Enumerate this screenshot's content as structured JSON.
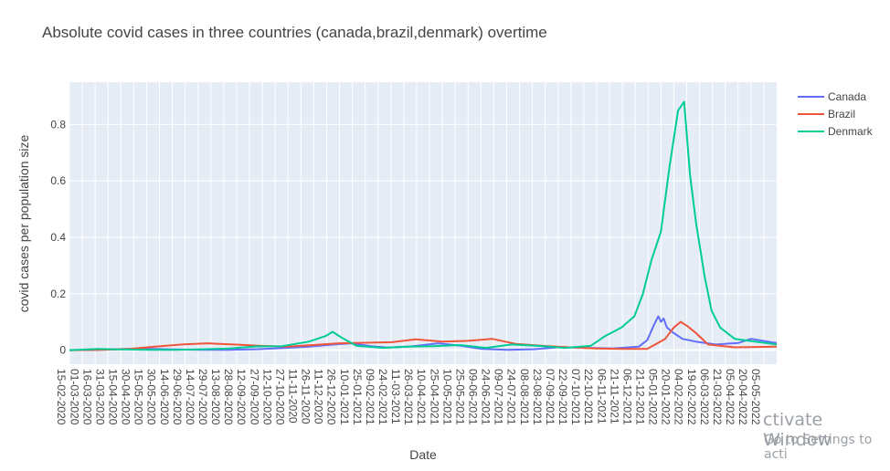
{
  "chart_data": {
    "type": "line",
    "title": "Absolute covid cases in three countries (canada,brazil,denmark) overtime",
    "xlabel": "Date",
    "ylabel": "covid cases per population size",
    "x_range": [
      "2020-02-15",
      "2022-05-20"
    ],
    "ylim": [
      -0.05,
      0.95
    ],
    "y_ticks": [
      0,
      0.2,
      0.4,
      0.6,
      0.8
    ],
    "x_ticks": [
      "15-02-2020",
      "01-03-2020",
      "16-03-2020",
      "31-03-2020",
      "15-04-2020",
      "30-04-2020",
      "15-05-2020",
      "30-05-2020",
      "14-06-2020",
      "29-06-2020",
      "14-07-2020",
      "29-07-2020",
      "13-08-2020",
      "28-08-2020",
      "12-09-2020",
      "27-09-2020",
      "12-10-2020",
      "27-10-2020",
      "11-11-2020",
      "26-11-2020",
      "11-12-2020",
      "26-12-2020",
      "10-01-2021",
      "25-01-2021",
      "09-02-2021",
      "24-02-2021",
      "11-03-2021",
      "26-03-2021",
      "10-04-2021",
      "25-04-2021",
      "10-05-2021",
      "25-05-2021",
      "09-06-2021",
      "24-06-2021",
      "09-07-2021",
      "24-07-2021",
      "08-08-2021",
      "23-08-2021",
      "07-09-2021",
      "22-09-2021",
      "07-10-2021",
      "22-10-2021",
      "06-11-2021",
      "21-11-2021",
      "06-12-2021",
      "21-12-2021",
      "05-01-2022",
      "20-01-2022",
      "04-02-2022",
      "19-02-2022",
      "06-03-2022",
      "21-03-2022",
      "05-04-2022",
      "20-04-2022",
      "05-05-2022"
    ],
    "grid": true,
    "legend_position": "top-right",
    "background_color": "#e5ecf6",
    "series": [
      {
        "name": "Canada",
        "color": "#636efa",
        "points": [
          [
            "2020-02-15",
            0.0
          ],
          [
            "2020-03-20",
            0.001
          ],
          [
            "2020-04-20",
            0.004
          ],
          [
            "2020-05-20",
            0.004
          ],
          [
            "2020-06-20",
            0.002
          ],
          [
            "2020-07-20",
            0.001
          ],
          [
            "2020-08-20",
            0.001
          ],
          [
            "2020-09-20",
            0.003
          ],
          [
            "2020-10-20",
            0.007
          ],
          [
            "2020-11-20",
            0.012
          ],
          [
            "2020-12-20",
            0.02
          ],
          [
            "2021-01-08",
            0.024
          ],
          [
            "2021-02-01",
            0.014
          ],
          [
            "2021-02-20",
            0.009
          ],
          [
            "2021-03-20",
            0.013
          ],
          [
            "2021-04-20",
            0.024
          ],
          [
            "2021-05-15",
            0.016
          ],
          [
            "2021-06-10",
            0.004
          ],
          [
            "2021-07-10",
            0.001
          ],
          [
            "2021-08-10",
            0.003
          ],
          [
            "2021-09-10",
            0.011
          ],
          [
            "2021-10-10",
            0.008
          ],
          [
            "2021-11-10",
            0.006
          ],
          [
            "2021-12-10",
            0.012
          ],
          [
            "2021-12-20",
            0.035
          ],
          [
            "2021-12-28",
            0.09
          ],
          [
            "2022-01-02",
            0.12
          ],
          [
            "2022-01-05",
            0.1
          ],
          [
            "2022-01-08",
            0.112
          ],
          [
            "2022-01-12",
            0.08
          ],
          [
            "2022-01-20",
            0.06
          ],
          [
            "2022-01-30",
            0.04
          ],
          [
            "2022-02-15",
            0.03
          ],
          [
            "2022-03-10",
            0.02
          ],
          [
            "2022-04-05",
            0.025
          ],
          [
            "2022-04-20",
            0.04
          ],
          [
            "2022-05-20",
            0.025
          ]
        ]
      },
      {
        "name": "Brazil",
        "color": "#ef553b",
        "points": [
          [
            "2020-02-15",
            0.0
          ],
          [
            "2020-03-25",
            0.001
          ],
          [
            "2020-04-25",
            0.004
          ],
          [
            "2020-05-25",
            0.012
          ],
          [
            "2020-06-25",
            0.02
          ],
          [
            "2020-07-25",
            0.024
          ],
          [
            "2020-08-25",
            0.02
          ],
          [
            "2020-09-25",
            0.015
          ],
          [
            "2020-10-25",
            0.012
          ],
          [
            "2020-11-25",
            0.018
          ],
          [
            "2020-12-25",
            0.024
          ],
          [
            "2021-01-25",
            0.026
          ],
          [
            "2021-02-25",
            0.028
          ],
          [
            "2021-03-25",
            0.038
          ],
          [
            "2021-04-25",
            0.03
          ],
          [
            "2021-05-25",
            0.033
          ],
          [
            "2021-06-22",
            0.04
          ],
          [
            "2021-07-20",
            0.022
          ],
          [
            "2021-08-20",
            0.015
          ],
          [
            "2021-09-20",
            0.01
          ],
          [
            "2021-10-20",
            0.006
          ],
          [
            "2021-11-20",
            0.004
          ],
          [
            "2021-12-20",
            0.004
          ],
          [
            "2022-01-10",
            0.04
          ],
          [
            "2022-01-20",
            0.08
          ],
          [
            "2022-01-28",
            0.1
          ],
          [
            "2022-02-05",
            0.085
          ],
          [
            "2022-02-15",
            0.06
          ],
          [
            "2022-03-01",
            0.02
          ],
          [
            "2022-04-01",
            0.01
          ],
          [
            "2022-05-20",
            0.012
          ]
        ]
      },
      {
        "name": "Denmark",
        "color": "#00cc96",
        "points": [
          [
            "2020-02-15",
            0.0
          ],
          [
            "2020-03-20",
            0.004
          ],
          [
            "2020-04-20",
            0.002
          ],
          [
            "2020-05-20",
            0.001
          ],
          [
            "2020-06-20",
            0.001
          ],
          [
            "2020-07-20",
            0.003
          ],
          [
            "2020-08-20",
            0.006
          ],
          [
            "2020-09-20",
            0.013
          ],
          [
            "2020-10-20",
            0.014
          ],
          [
            "2020-11-20",
            0.03
          ],
          [
            "2020-12-10",
            0.05
          ],
          [
            "2020-12-18",
            0.065
          ],
          [
            "2020-12-28",
            0.045
          ],
          [
            "2021-01-15",
            0.015
          ],
          [
            "2021-02-15",
            0.008
          ],
          [
            "2021-03-15",
            0.012
          ],
          [
            "2021-04-15",
            0.014
          ],
          [
            "2021-05-15",
            0.018
          ],
          [
            "2021-06-15",
            0.008
          ],
          [
            "2021-07-15",
            0.02
          ],
          [
            "2021-08-15",
            0.015
          ],
          [
            "2021-09-15",
            0.008
          ],
          [
            "2021-10-15",
            0.015
          ],
          [
            "2021-11-01",
            0.05
          ],
          [
            "2021-11-20",
            0.08
          ],
          [
            "2021-12-05",
            0.12
          ],
          [
            "2021-12-15",
            0.2
          ],
          [
            "2021-12-25",
            0.32
          ],
          [
            "2022-01-05",
            0.42
          ],
          [
            "2022-01-15",
            0.65
          ],
          [
            "2022-01-25",
            0.85
          ],
          [
            "2022-02-01",
            0.88
          ],
          [
            "2022-02-08",
            0.62
          ],
          [
            "2022-02-15",
            0.45
          ],
          [
            "2022-02-25",
            0.26
          ],
          [
            "2022-03-05",
            0.14
          ],
          [
            "2022-03-15",
            0.08
          ],
          [
            "2022-04-01",
            0.04
          ],
          [
            "2022-05-20",
            0.02
          ]
        ]
      }
    ]
  },
  "watermark": {
    "line1": "ctivate Window",
    "line2": "Go to Settings to acti"
  }
}
